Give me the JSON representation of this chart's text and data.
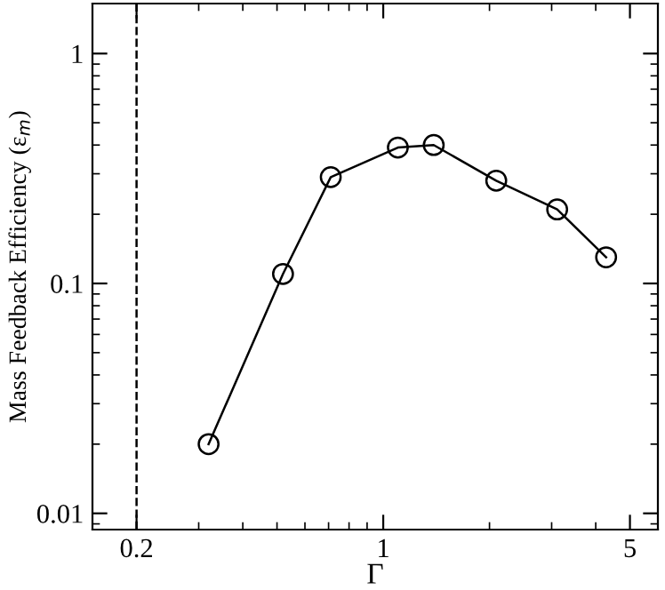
{
  "chart_data": {
    "type": "line",
    "xlabel": "Γ",
    "ylabel": "Mass Feedback Efficiency (ε$_{m}$)",
    "x": [
      0.32,
      0.52,
      0.71,
      1.1,
      1.39,
      2.09,
      3.11,
      4.28
    ],
    "series": [
      {
        "color": "#000000",
        "values": [
          0.02,
          0.11,
          0.29,
          0.39,
          0.4,
          0.28,
          0.21,
          0.13
        ]
      }
    ],
    "log": "xy",
    "xlim": [
      0.15,
      6
    ],
    "ylim": [
      0.0085,
      1.65
    ],
    "xticks": [
      0.2,
      1,
      5
    ],
    "yticks": [
      0.01,
      0.1,
      1
    ],
    "marker": "circle",
    "line_style": "solid",
    "grid": false,
    "legend": false,
    "ref_lines": [
      {
        "axis": "x",
        "value": 0.2,
        "color": "#000000",
        "line_style": "dashed"
      }
    ]
  }
}
